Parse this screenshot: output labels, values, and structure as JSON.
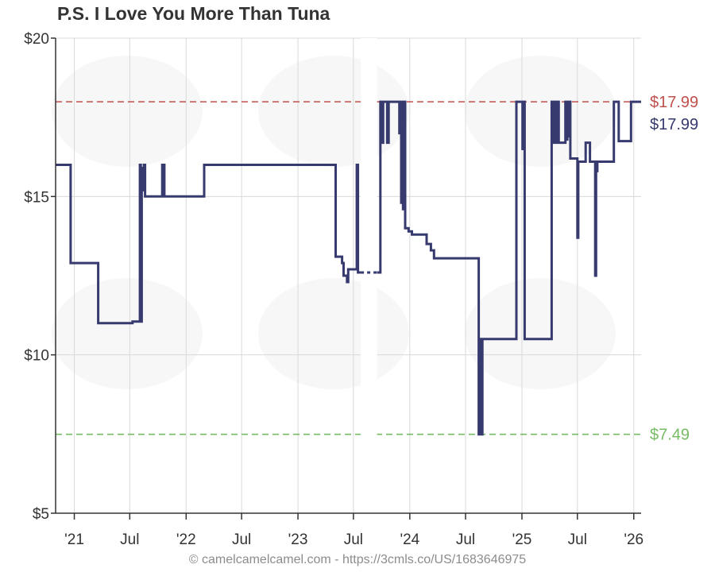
{
  "chart_data": {
    "type": "line",
    "title": "P.S. I Love You More Than Tuna",
    "ylim": [
      5,
      20
    ],
    "y_ticks": [
      {
        "value": 5,
        "label": "$5"
      },
      {
        "value": 10,
        "label": "$10"
      },
      {
        "value": 15,
        "label": "$15"
      },
      {
        "value": 20,
        "label": "$20"
      }
    ],
    "x_range": [
      "2020-11-01",
      "2026-01-25"
    ],
    "x_ticks": [
      {
        "date": "2021-01-01",
        "label": "'21"
      },
      {
        "date": "2021-07-01",
        "label": "Jul"
      },
      {
        "date": "2022-01-01",
        "label": "'22"
      },
      {
        "date": "2022-07-01",
        "label": "Jul"
      },
      {
        "date": "2023-01-01",
        "label": "'23"
      },
      {
        "date": "2023-07-01",
        "label": "Jul"
      },
      {
        "date": "2024-01-01",
        "label": "'24"
      },
      {
        "date": "2024-07-01",
        "label": "Jul"
      },
      {
        "date": "2025-01-01",
        "label": "'25"
      },
      {
        "date": "2025-07-01",
        "label": "Jul"
      },
      {
        "date": "2026-01-01",
        "label": "'26"
      }
    ],
    "grid": true,
    "reference_lines": [
      {
        "value": 17.99,
        "label": "$17.99",
        "color": "#c0504d",
        "style": "dashed"
      },
      {
        "value": 7.49,
        "label": "$7.49",
        "color": "#77bc65",
        "style": "dashed"
      }
    ],
    "series": [
      {
        "color": "#363a6e",
        "end_label": "$17.99",
        "step": true,
        "points": [
          [
            "2020-11-01",
            16.0
          ],
          [
            "2020-12-20",
            12.9
          ],
          [
            "2021-03-20",
            11.0
          ],
          [
            "2021-06-25",
            11.0
          ],
          [
            "2021-07-10",
            11.05
          ],
          [
            "2021-08-03",
            16.0
          ],
          [
            "2021-08-06",
            11.05
          ],
          [
            "2021-08-09",
            15.9
          ],
          [
            "2021-08-13",
            15.2
          ],
          [
            "2021-08-16",
            16.0
          ],
          [
            "2021-08-20",
            15.0
          ],
          [
            "2021-10-15",
            16.0
          ],
          [
            "2021-10-22",
            15.0
          ],
          [
            "2022-03-01",
            16.0
          ],
          [
            "2023-05-01",
            16.0
          ],
          [
            "2023-05-04",
            13.1
          ],
          [
            "2023-05-25",
            12.9
          ],
          [
            "2023-05-30",
            12.5
          ],
          [
            "2023-06-10",
            12.3
          ],
          [
            "2023-06-14",
            12.7
          ],
          [
            "2023-07-12",
            16.0
          ],
          [
            "2023-07-16",
            12.6
          ],
          [
            "2023-09-20",
            12.6
          ],
          [
            "2023-09-27",
            17.99
          ],
          [
            "2023-10-02",
            16.7
          ],
          [
            "2023-10-06",
            17.99
          ],
          [
            "2023-10-14",
            17.99
          ],
          [
            "2023-10-19",
            16.7
          ],
          [
            "2023-10-24",
            17.99
          ],
          [
            "2023-11-28",
            17.0
          ],
          [
            "2023-12-01",
            17.99
          ],
          [
            "2023-12-04",
            14.8
          ],
          [
            "2023-12-07",
            17.99
          ],
          [
            "2023-12-10",
            14.6
          ],
          [
            "2023-12-13",
            17.99
          ],
          [
            "2023-12-17",
            14.0
          ],
          [
            "2023-12-28",
            13.9
          ],
          [
            "2024-01-08",
            13.8
          ],
          [
            "2024-02-05",
            13.8
          ],
          [
            "2024-02-25",
            13.5
          ],
          [
            "2024-03-10",
            13.3
          ],
          [
            "2024-03-20",
            13.05
          ],
          [
            "2024-08-10",
            13.05
          ],
          [
            "2024-08-13",
            7.49
          ],
          [
            "2024-08-18",
            10.5
          ],
          [
            "2024-08-22",
            7.49
          ],
          [
            "2024-08-25",
            10.5
          ],
          [
            "2024-12-10",
            10.5
          ],
          [
            "2024-12-14",
            17.99
          ],
          [
            "2025-01-03",
            16.5
          ],
          [
            "2025-01-06",
            17.99
          ],
          [
            "2025-01-10",
            10.5
          ],
          [
            "2025-04-05",
            10.5
          ],
          [
            "2025-04-08",
            17.99
          ],
          [
            "2025-04-12",
            16.7
          ],
          [
            "2025-04-16",
            17.99
          ],
          [
            "2025-04-20",
            16.7
          ],
          [
            "2025-04-25",
            17.99
          ],
          [
            "2025-05-01",
            16.7
          ],
          [
            "2025-05-20",
            16.7
          ],
          [
            "2025-05-23",
            17.99
          ],
          [
            "2025-05-26",
            16.8
          ],
          [
            "2025-05-29",
            17.99
          ],
          [
            "2025-06-01",
            16.9
          ],
          [
            "2025-06-04",
            17.99
          ],
          [
            "2025-06-08",
            16.2
          ],
          [
            "2025-06-28",
            16.2
          ],
          [
            "2025-07-01",
            13.7
          ],
          [
            "2025-07-04",
            16.1
          ],
          [
            "2025-07-25",
            16.1
          ],
          [
            "2025-07-28",
            16.7
          ],
          [
            "2025-08-08",
            16.7
          ],
          [
            "2025-08-11",
            16.1
          ],
          [
            "2025-08-25",
            16.1
          ],
          [
            "2025-08-28",
            12.5
          ],
          [
            "2025-08-31",
            15.8
          ],
          [
            "2025-09-04",
            16.1
          ],
          [
            "2025-10-25",
            16.1
          ],
          [
            "2025-10-28",
            17.99
          ],
          [
            "2025-11-10",
            17.99
          ],
          [
            "2025-11-13",
            16.75
          ],
          [
            "2025-12-20",
            16.75
          ],
          [
            "2025-12-23",
            17.99
          ],
          [
            "2026-01-25",
            17.99
          ]
        ],
        "no_data_ranges": [
          [
            "2023-07-25",
            "2023-09-16"
          ]
        ]
      }
    ]
  },
  "footer": "© camelcamelcamel.com - https://3cmls.co/US/1683646975"
}
